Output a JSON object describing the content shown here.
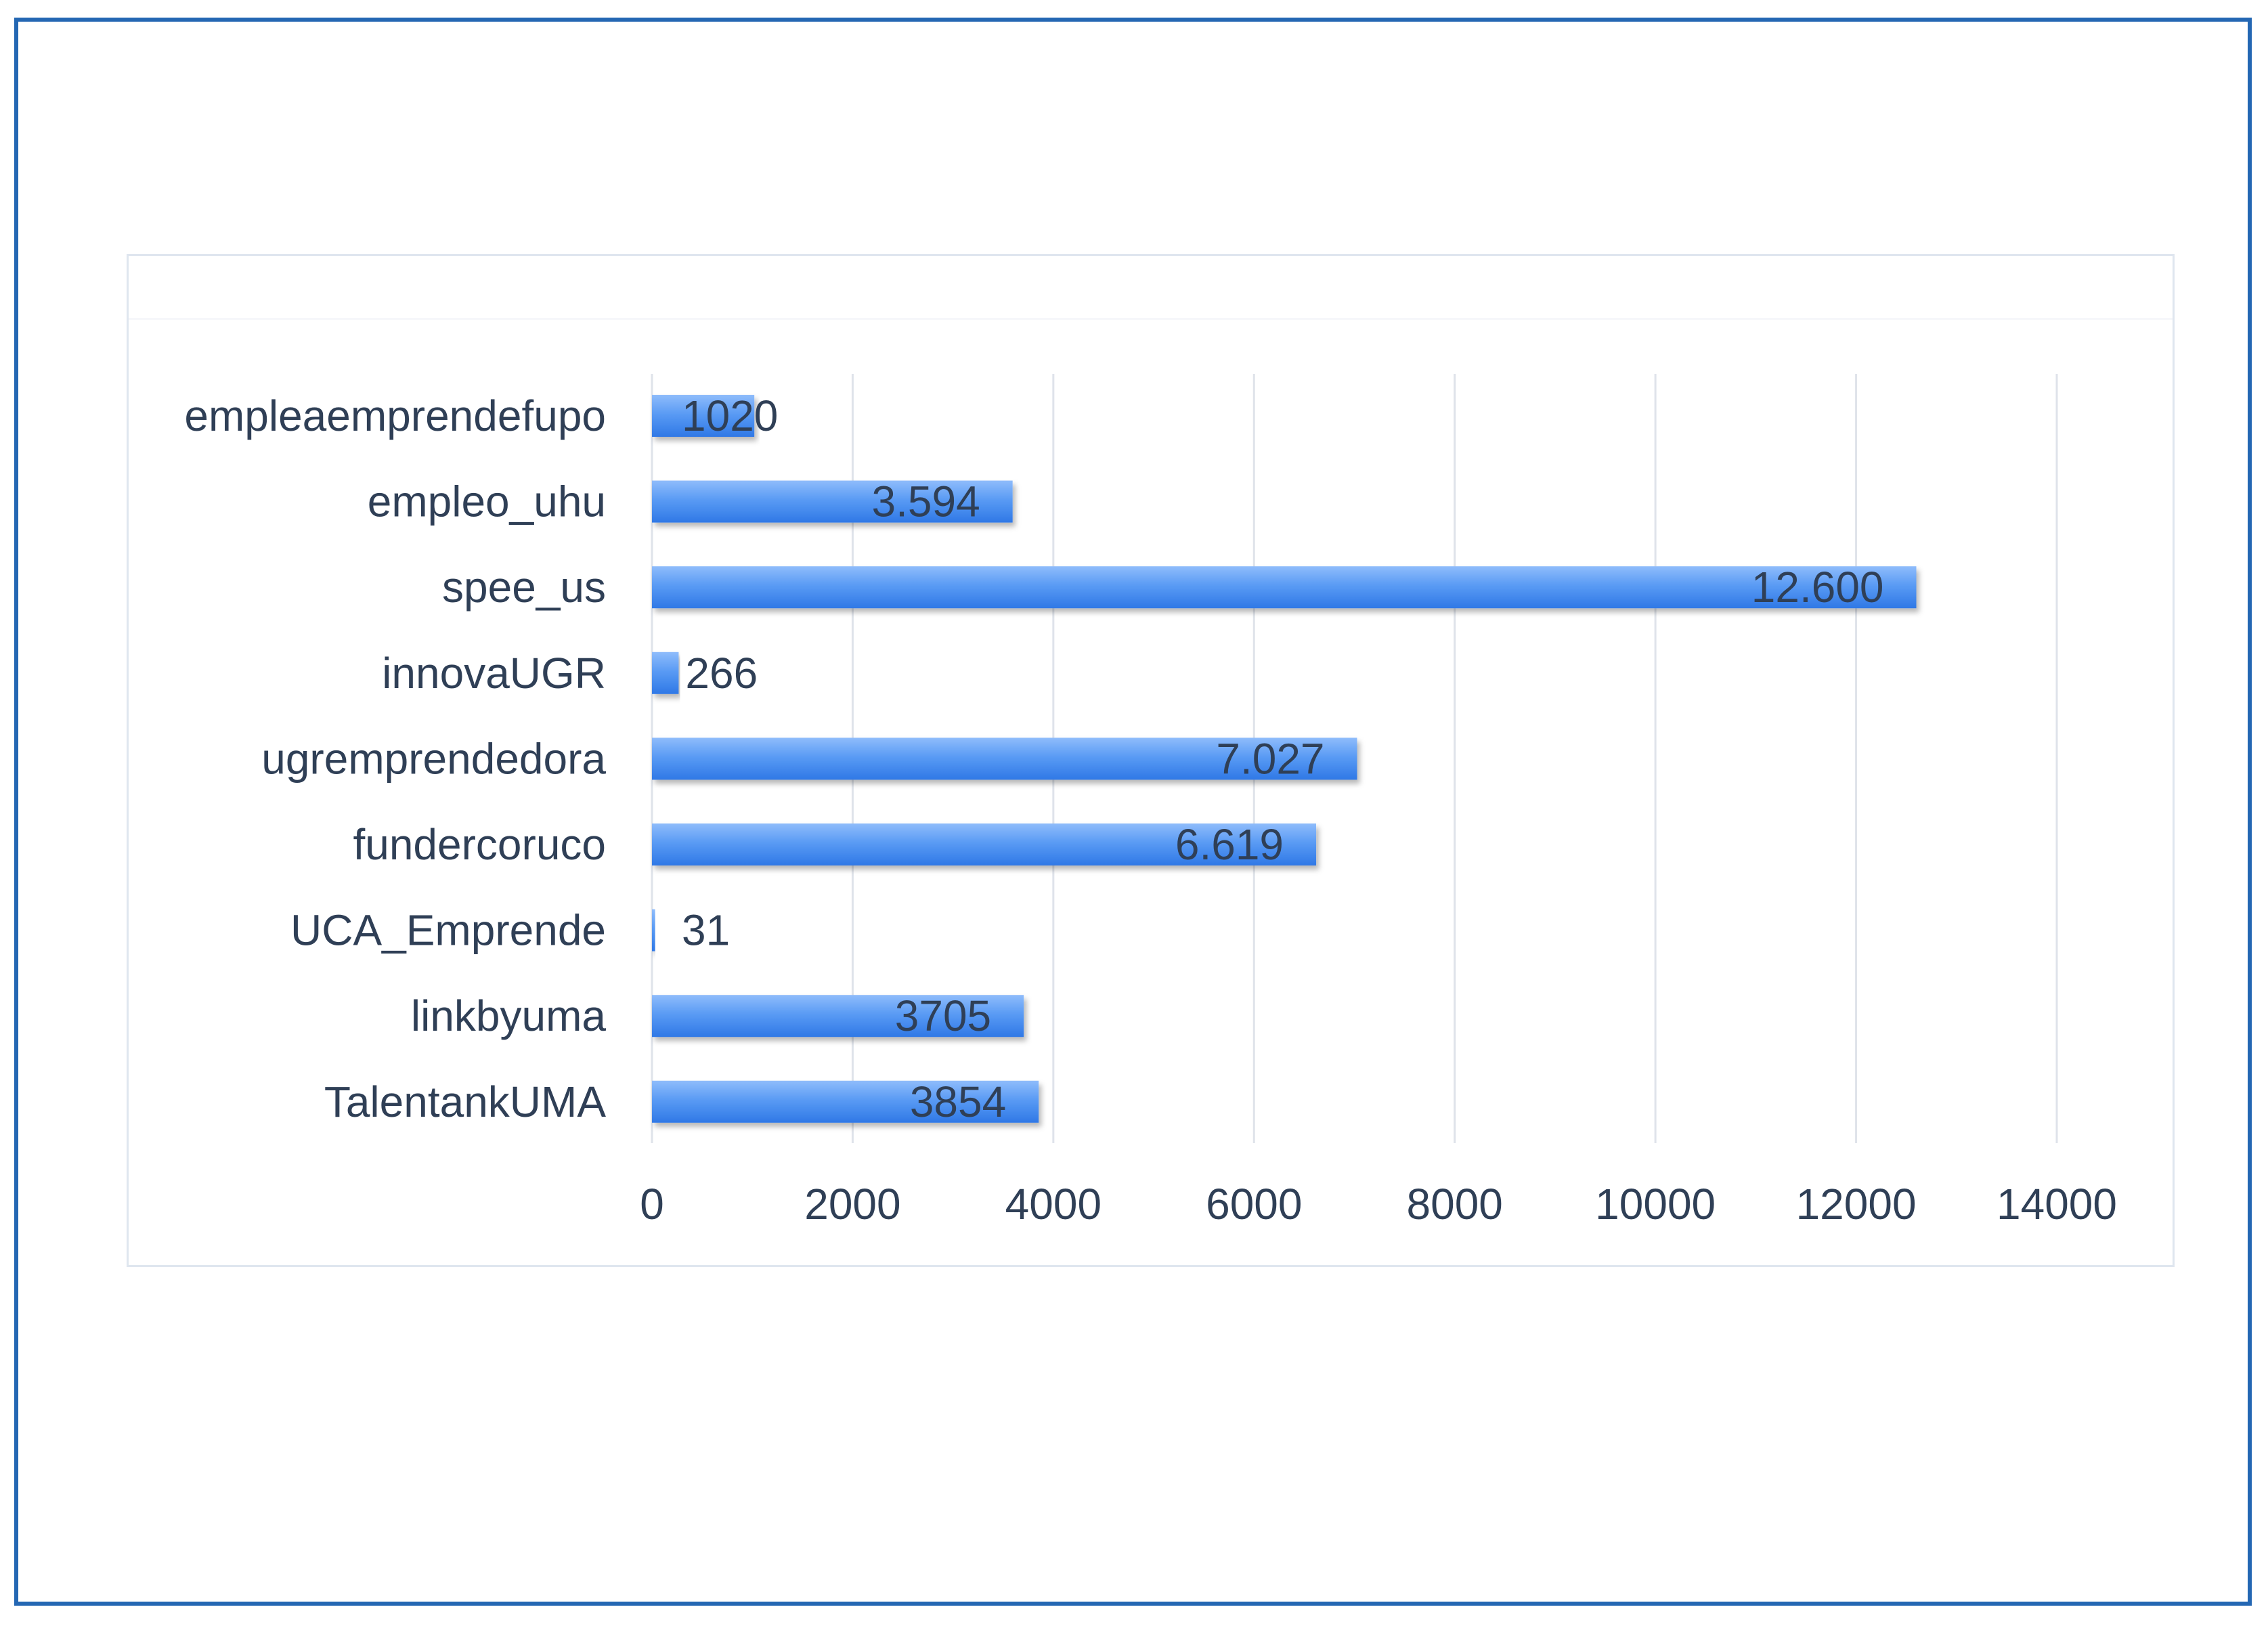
{
  "chart_data": {
    "type": "bar",
    "orientation": "horizontal",
    "title": "",
    "xlabel": "",
    "ylabel": "",
    "categories": [
      "empleaemprendefupo",
      "empleo_uhu",
      "spee_us",
      "innovaUGR",
      "ugremprendedora",
      "fundercoruco",
      "UCA_Emprende",
      "linkbyuma",
      "TalentankUMA"
    ],
    "values": [
      1020,
      3594,
      12600,
      266,
      7027,
      6619,
      31,
      3705,
      3854
    ],
    "data_labels": [
      "1020",
      "3.594",
      "12.600",
      "266",
      "7.027",
      "6.619",
      "31",
      "3705",
      "3854"
    ],
    "xlim": [
      0,
      14000
    ],
    "xticks": [
      0,
      2000,
      4000,
      6000,
      8000,
      10000,
      12000,
      14000
    ],
    "xtick_labels": [
      "0",
      "2000",
      "4000",
      "6000",
      "8000",
      "10000",
      "12000",
      "14000"
    ],
    "grid": "vertical",
    "legend": "none",
    "bar_color": "#4a8ef0"
  }
}
